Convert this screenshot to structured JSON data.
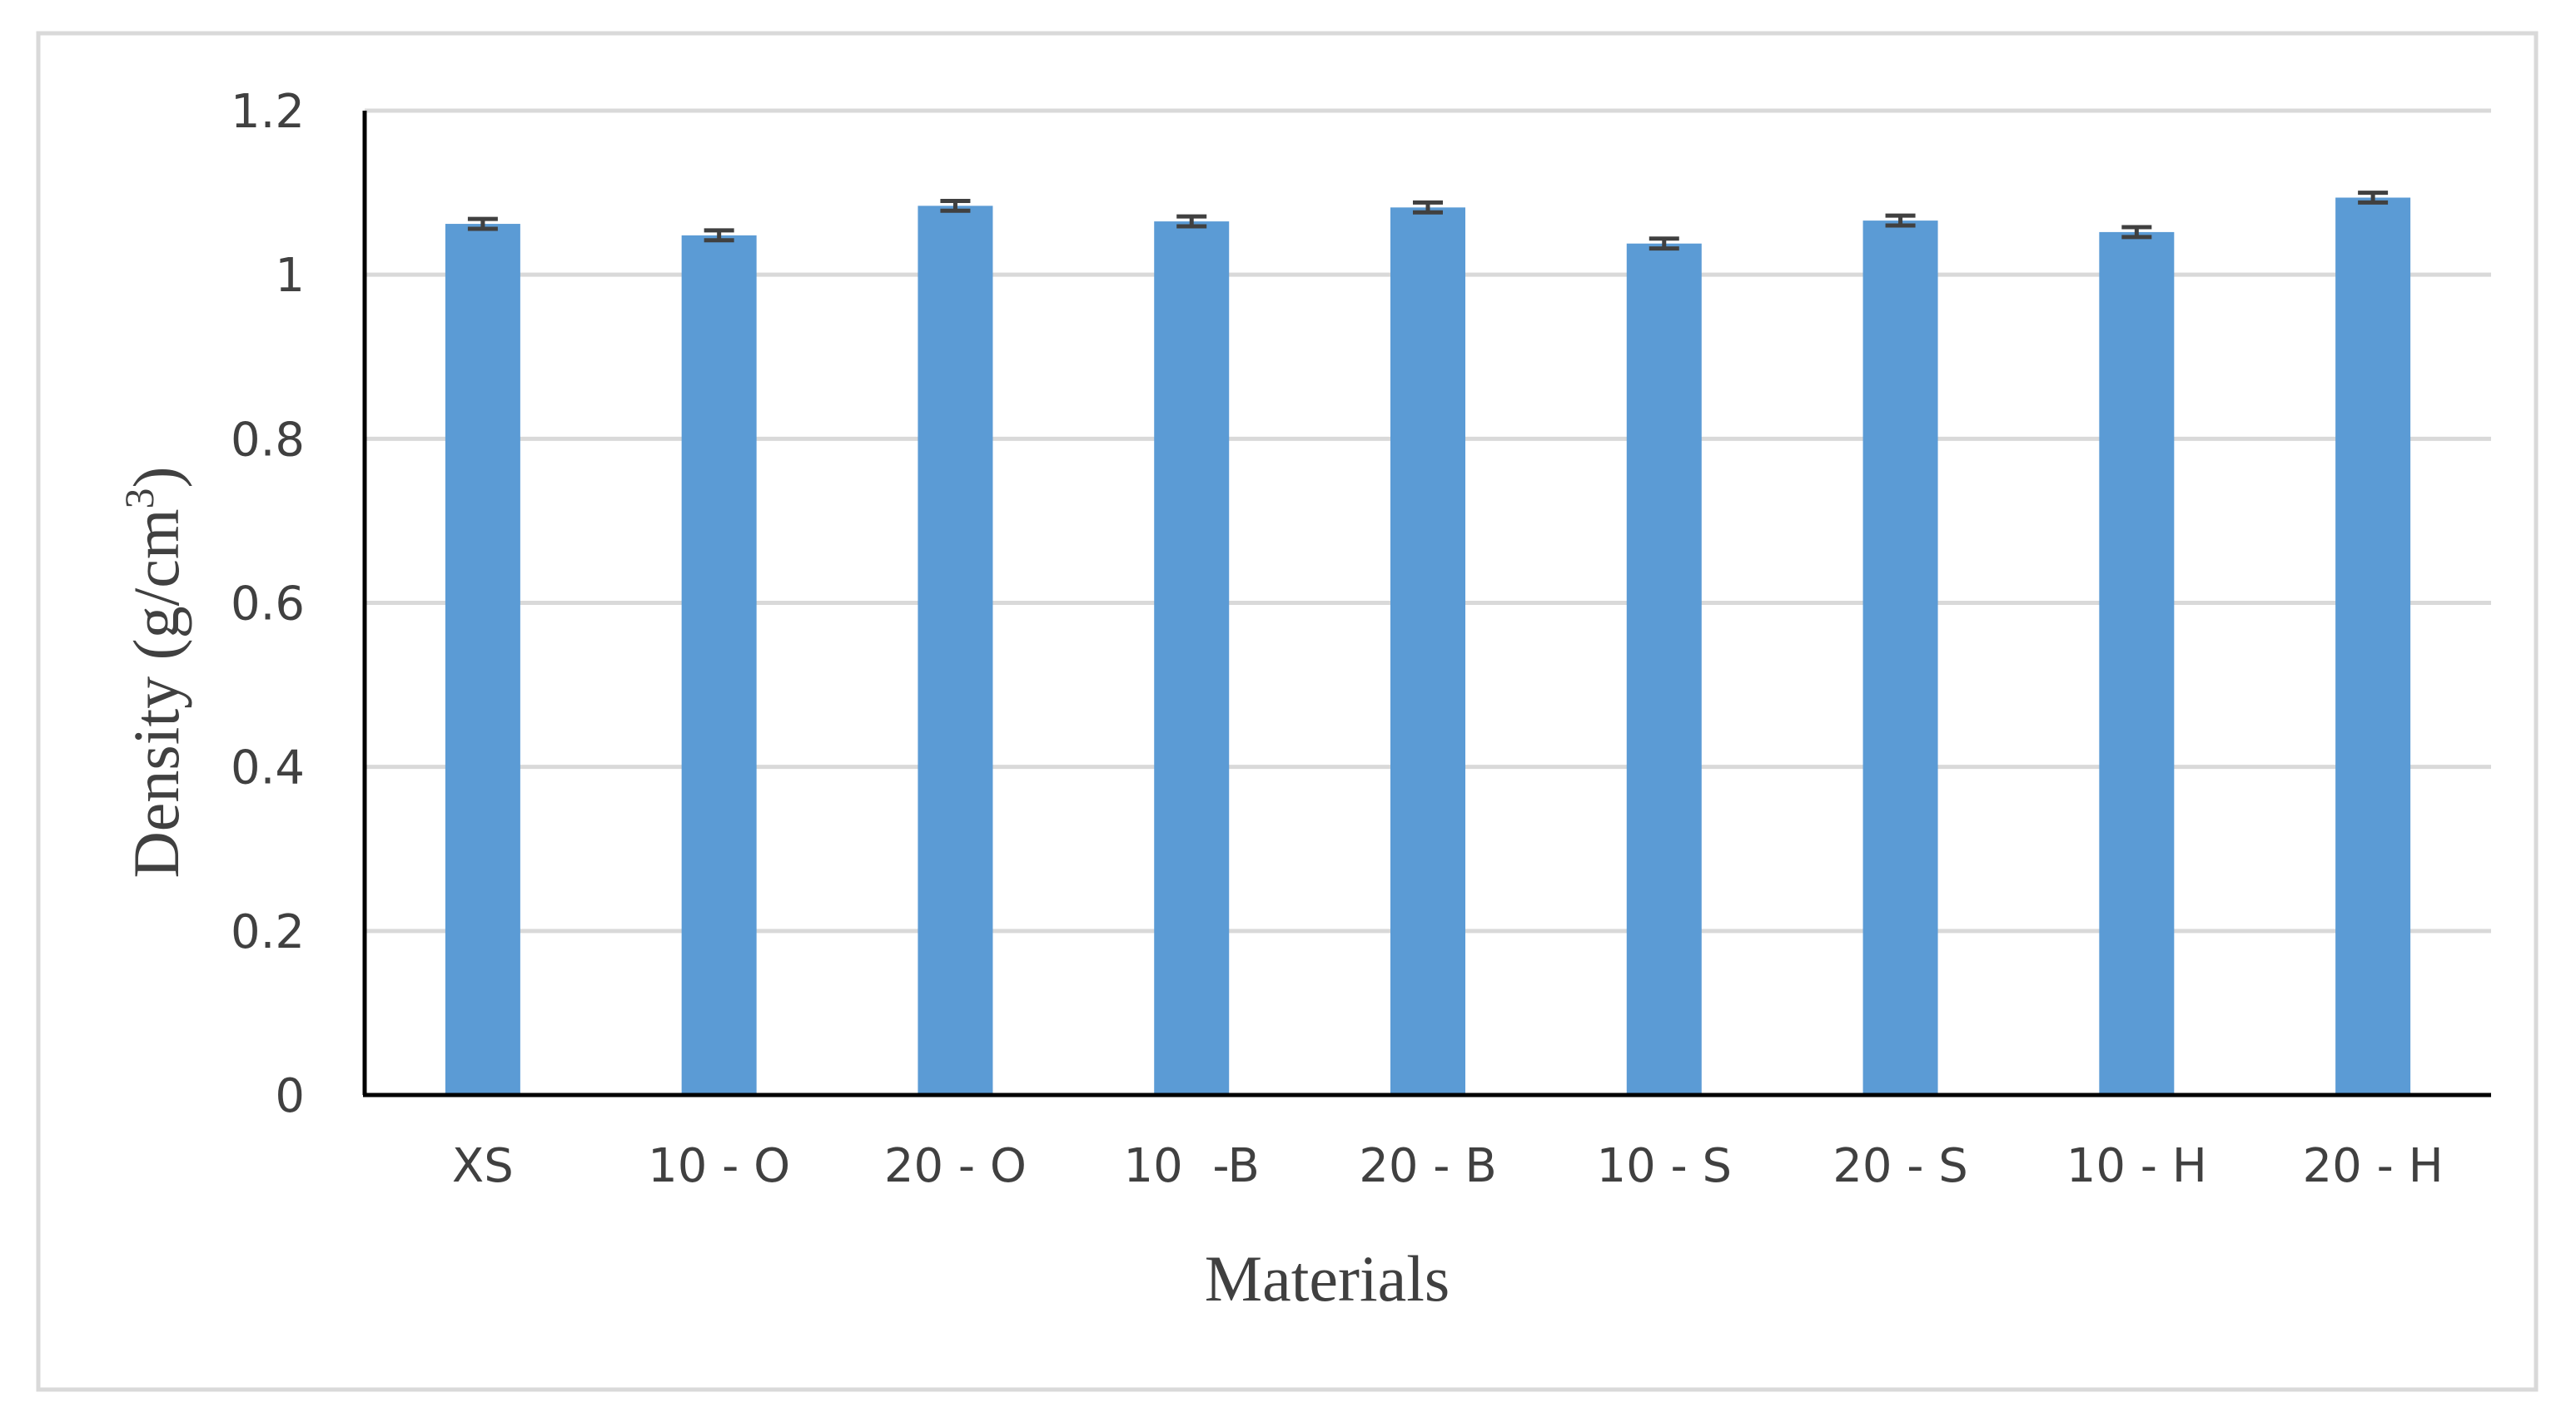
{
  "chart_data": {
    "type": "bar",
    "title": "",
    "xlabel": "Materials",
    "ylabel": {
      "main": "Density (g/cm",
      "superscript": "3",
      "close": ")"
    },
    "categories": [
      "XS",
      "10 - O",
      "20 - O",
      "10  -B",
      "20 - B",
      "10 - S",
      "20 - S",
      "10 - H",
      "20 - H"
    ],
    "series": [
      {
        "values": [
          1.062,
          1.048,
          1.084,
          1.065,
          1.082,
          1.038,
          1.066,
          1.052,
          1.094
        ],
        "error": [
          0.006,
          0.006,
          0.006,
          0.006,
          0.006,
          0.006,
          0.006,
          0.006,
          0.006
        ]
      }
    ],
    "ylim": [
      0,
      1.2
    ],
    "yticks": [
      "0",
      "0.2",
      "0.4",
      "0.6",
      "0.8",
      "1",
      "1.2"
    ],
    "grid": true,
    "legend": "none",
    "colors": {
      "bar": "#5b9bd5",
      "error_bar": "#404040",
      "grid": "#d9d9d9",
      "axis": "#000000",
      "frame": "#d9d9d9"
    }
  }
}
